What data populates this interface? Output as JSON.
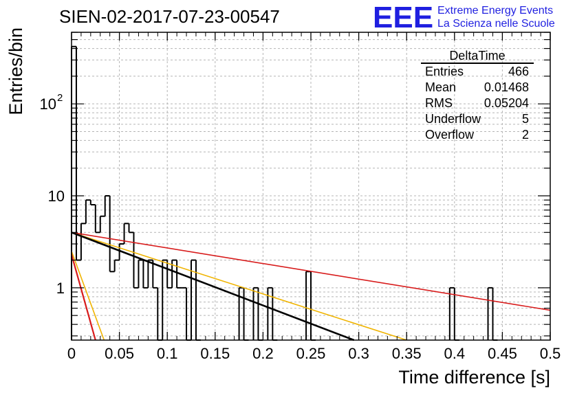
{
  "title": "SIEN-02-2017-07-23-00547",
  "logo": {
    "mark": "EEE",
    "line1": "Extreme Energy Events",
    "line2": "La Scienza nelle Scuole",
    "color": "#1f1fe0"
  },
  "stats": {
    "name": "DeltaTime",
    "rows": [
      {
        "label": "Entries",
        "value": "466"
      },
      {
        "label": "Mean",
        "value": "0.01468"
      },
      {
        "label": "RMS",
        "value": "0.05204"
      },
      {
        "label": "Underflow",
        "value": "5"
      },
      {
        "label": "Overflow",
        "value": "2"
      }
    ]
  },
  "chart_data": {
    "type": "histogram",
    "xlabel": "Time difference [s]",
    "ylabel": "Entries/bin",
    "xlim": [
      0,
      0.5
    ],
    "ylim": [
      0.27,
      600
    ],
    "yscale": "log",
    "grid": true,
    "bin_width": 0.005,
    "x_ticks": [
      "0",
      "0.05",
      "0.1",
      "0.15",
      "0.2",
      "0.25",
      "0.3",
      "0.35",
      "0.4",
      "0.45",
      "0.5"
    ],
    "y_ticks": [
      {
        "value": 1,
        "label": "1"
      },
      {
        "value": 10,
        "label": "10"
      },
      {
        "value": 100,
        "label": "10",
        "exponent": "2"
      }
    ],
    "bins": [
      {
        "x": 0.0,
        "y": 420
      },
      {
        "x": 0.005,
        "y": 2
      },
      {
        "x": 0.01,
        "y": 5
      },
      {
        "x": 0.015,
        "y": 9
      },
      {
        "x": 0.02,
        "y": 8
      },
      {
        "x": 0.025,
        "y": 4
      },
      {
        "x": 0.03,
        "y": 6
      },
      {
        "x": 0.035,
        "y": 10
      },
      {
        "x": 0.04,
        "y": 1.5
      },
      {
        "x": 0.045,
        "y": 2
      },
      {
        "x": 0.05,
        "y": 3
      },
      {
        "x": 0.055,
        "y": 5
      },
      {
        "x": 0.06,
        "y": 4
      },
      {
        "x": 0.065,
        "y": 1
      },
      {
        "x": 0.07,
        "y": 2
      },
      {
        "x": 0.075,
        "y": 1
      },
      {
        "x": 0.08,
        "y": 2
      },
      {
        "x": 0.085,
        "y": 1
      },
      {
        "x": 0.09,
        "y": 0
      },
      {
        "x": 0.095,
        "y": 2
      },
      {
        "x": 0.1,
        "y": 1
      },
      {
        "x": 0.105,
        "y": 2
      },
      {
        "x": 0.11,
        "y": 1
      },
      {
        "x": 0.115,
        "y": 1
      },
      {
        "x": 0.12,
        "y": 0
      },
      {
        "x": 0.125,
        "y": 2
      },
      {
        "x": 0.13,
        "y": 0
      },
      {
        "x": 0.175,
        "y": 1
      },
      {
        "x": 0.18,
        "y": 0
      },
      {
        "x": 0.19,
        "y": 1
      },
      {
        "x": 0.195,
        "y": 0
      },
      {
        "x": 0.205,
        "y": 1
      },
      {
        "x": 0.21,
        "y": 0
      },
      {
        "x": 0.245,
        "y": 1.5
      },
      {
        "x": 0.25,
        "y": 0
      },
      {
        "x": 0.395,
        "y": 1
      },
      {
        "x": 0.4,
        "y": 0
      },
      {
        "x": 0.435,
        "y": 1
      },
      {
        "x": 0.44,
        "y": 0
      }
    ],
    "fit_lines": [
      {
        "color": "#d81b1b",
        "width": 1.6,
        "points": [
          [
            0,
            4.0
          ],
          [
            0.5,
            0.57
          ]
        ]
      },
      {
        "color": "#f0b400",
        "width": 1.6,
        "points": [
          [
            0,
            4.0
          ],
          [
            0.35,
            0.27
          ]
        ]
      },
      {
        "color": "#000000",
        "width": 2.6,
        "points": [
          [
            0,
            4.0
          ],
          [
            0.295,
            0.27
          ]
        ]
      },
      {
        "color": "#f0b400",
        "width": 1.6,
        "points": [
          [
            0,
            2.5
          ],
          [
            0.034,
            0.27
          ]
        ]
      },
      {
        "color": "#d81b1b",
        "width": 2.2,
        "points": [
          [
            0,
            2.3
          ],
          [
            0.025,
            0.27
          ]
        ]
      }
    ]
  }
}
